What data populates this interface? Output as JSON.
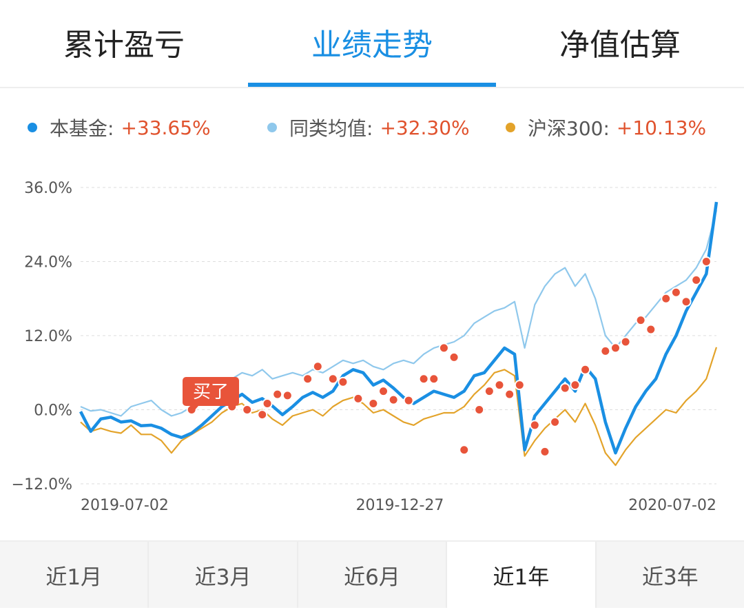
{
  "tabs": [
    {
      "label": "累计盈亏",
      "active": false
    },
    {
      "label": "业绩走势",
      "active": true
    },
    {
      "label": "净值估算",
      "active": false
    }
  ],
  "legend": [
    {
      "name": "本基金:",
      "value": "+33.65%",
      "color": "#1a8fe3"
    },
    {
      "name": "同类均值:",
      "value": "+32.30%",
      "color": "#8fc8ec"
    },
    {
      "name": "沪深300:",
      "value": "+10.13%",
      "color": "#e3a32a"
    }
  ],
  "colors": {
    "accent": "#1a8fe3",
    "value": "#e0522d",
    "marker": "#e8543a",
    "fund": "#1a8fe3",
    "peer": "#8fc8ec",
    "index": "#e3a32a"
  },
  "badge": {
    "label": "买了"
  },
  "chart_data": {
    "type": "line",
    "ylim": [
      -12,
      36
    ],
    "yticks": [
      36,
      24,
      12,
      0,
      -12
    ],
    "ytick_labels": [
      "36.0%",
      "24.0%",
      "12.0%",
      "0.0%",
      "−12.0%"
    ],
    "xtick_labels": [
      "2019-07-02",
      "2019-12-27",
      "2020-07-02"
    ],
    "grid": true,
    "x": [
      0,
      4,
      8,
      12,
      16,
      20,
      24,
      28,
      32,
      36,
      40,
      44,
      48,
      52,
      56,
      60,
      64,
      68,
      72,
      76,
      80,
      84,
      88,
      92,
      96,
      100,
      104,
      108,
      112,
      116,
      120,
      124,
      128,
      132,
      136,
      140,
      144,
      148,
      152,
      156,
      160,
      164,
      168,
      172,
      176,
      180,
      184,
      188,
      192,
      196,
      200,
      204,
      208,
      212,
      216,
      220,
      224,
      228,
      232,
      236,
      240,
      244,
      248,
      252
    ],
    "series": [
      {
        "name": "本基金",
        "values": [
          -0.3,
          -3.5,
          -1.5,
          -1.2,
          -2.0,
          -1.8,
          -2.6,
          -2.5,
          -3.0,
          -4.0,
          -4.5,
          -3.8,
          -2.5,
          -1.0,
          0.5,
          1.5,
          2.5,
          1.2,
          1.8,
          0.6,
          -0.8,
          0.5,
          2.0,
          2.8,
          2.0,
          3.0,
          5.5,
          6.5,
          6.0,
          4.0,
          4.8,
          3.5,
          2.0,
          1.0,
          2.0,
          3.0,
          2.5,
          2.0,
          3.0,
          5.5,
          6.0,
          8.0,
          10.0,
          9.0,
          -6.5,
          -1.0,
          1.0,
          3.0,
          5.0,
          3.0,
          7.0,
          5.0,
          -2.0,
          -7.0,
          -3.0,
          0.5,
          3.0,
          5.0,
          9.0,
          12.0,
          16.0,
          19.0,
          22.0,
          33.65
        ]
      },
      {
        "name": "同类均值",
        "values": [
          0.5,
          -0.2,
          0.0,
          -0.5,
          -1.0,
          0.5,
          1.0,
          1.5,
          0.0,
          -1.0,
          -0.5,
          0.5,
          1.5,
          2.5,
          3.5,
          5.0,
          6.0,
          5.5,
          6.5,
          5.0,
          5.5,
          6.0,
          5.5,
          6.5,
          6.0,
          7.0,
          8.0,
          7.5,
          8.0,
          7.0,
          6.5,
          7.5,
          8.0,
          7.5,
          9.0,
          10.0,
          10.5,
          11.0,
          12.0,
          14.0,
          15.0,
          16.0,
          16.5,
          17.5,
          10.0,
          17.0,
          20.0,
          22.0,
          23.0,
          20.0,
          22.0,
          18.0,
          12.0,
          10.0,
          12.0,
          14.0,
          15.0,
          17.0,
          19.0,
          20.0,
          21.0,
          23.0,
          26.0,
          32.3
        ]
      },
      {
        "name": "沪深300",
        "values": [
          -2.0,
          -3.5,
          -3.0,
          -3.5,
          -3.8,
          -2.5,
          -4.0,
          -4.0,
          -5.0,
          -7.0,
          -5.0,
          -4.0,
          -3.0,
          -2.0,
          -0.5,
          0.5,
          1.0,
          -0.5,
          0.0,
          -1.5,
          -2.5,
          -1.0,
          -0.5,
          0.0,
          -1.0,
          0.5,
          1.5,
          2.0,
          1.0,
          -0.5,
          0.0,
          -1.0,
          -2.0,
          -2.5,
          -1.5,
          -1.0,
          -0.5,
          -0.5,
          0.5,
          2.5,
          4.0,
          6.0,
          6.5,
          5.5,
          -7.5,
          -5.0,
          -3.0,
          -1.5,
          0.0,
          -2.0,
          1.0,
          -2.5,
          -7.0,
          -9.0,
          -6.5,
          -4.5,
          -3.0,
          -1.5,
          0.0,
          -0.5,
          1.5,
          3.0,
          5.0,
          10.13
        ]
      }
    ],
    "markers": [
      {
        "x": 44,
        "y": 0.0
      },
      {
        "x": 60,
        "y": 0.5
      },
      {
        "x": 66,
        "y": 0.0
      },
      {
        "x": 72,
        "y": -0.8
      },
      {
        "x": 74,
        "y": 1.0
      },
      {
        "x": 78,
        "y": 2.5
      },
      {
        "x": 82,
        "y": 2.3
      },
      {
        "x": 90,
        "y": 5.0
      },
      {
        "x": 94,
        "y": 7.0
      },
      {
        "x": 100,
        "y": 5.0
      },
      {
        "x": 104,
        "y": 4.5
      },
      {
        "x": 110,
        "y": 1.8
      },
      {
        "x": 116,
        "y": 1.0
      },
      {
        "x": 120,
        "y": 3.0
      },
      {
        "x": 124,
        "y": 1.6
      },
      {
        "x": 130,
        "y": 1.5
      },
      {
        "x": 136,
        "y": 5.0
      },
      {
        "x": 140,
        "y": 5.0
      },
      {
        "x": 144,
        "y": 10.0
      },
      {
        "x": 148,
        "y": 8.5
      },
      {
        "x": 152,
        "y": -6.5
      },
      {
        "x": 158,
        "y": 0.0
      },
      {
        "x": 162,
        "y": 3.0
      },
      {
        "x": 166,
        "y": 4.0
      },
      {
        "x": 170,
        "y": 2.5
      },
      {
        "x": 174,
        "y": 4.0
      },
      {
        "x": 180,
        "y": -2.5
      },
      {
        "x": 184,
        "y": -6.8
      },
      {
        "x": 188,
        "y": -2.0
      },
      {
        "x": 192,
        "y": 3.5
      },
      {
        "x": 196,
        "y": 4.0
      },
      {
        "x": 200,
        "y": 6.5
      },
      {
        "x": 208,
        "y": 9.5
      },
      {
        "x": 212,
        "y": 10.0
      },
      {
        "x": 216,
        "y": 11.0
      },
      {
        "x": 222,
        "y": 14.5
      },
      {
        "x": 226,
        "y": 13.0
      },
      {
        "x": 232,
        "y": 18.0
      },
      {
        "x": 236,
        "y": 19.0
      },
      {
        "x": 240,
        "y": 17.5
      },
      {
        "x": 244,
        "y": 21.0
      },
      {
        "x": 248,
        "y": 24.0
      }
    ]
  },
  "periods": [
    {
      "label": "近1月",
      "active": false
    },
    {
      "label": "近3月",
      "active": false
    },
    {
      "label": "近6月",
      "active": false
    },
    {
      "label": "近1年",
      "active": true
    },
    {
      "label": "近3年",
      "active": false
    }
  ]
}
